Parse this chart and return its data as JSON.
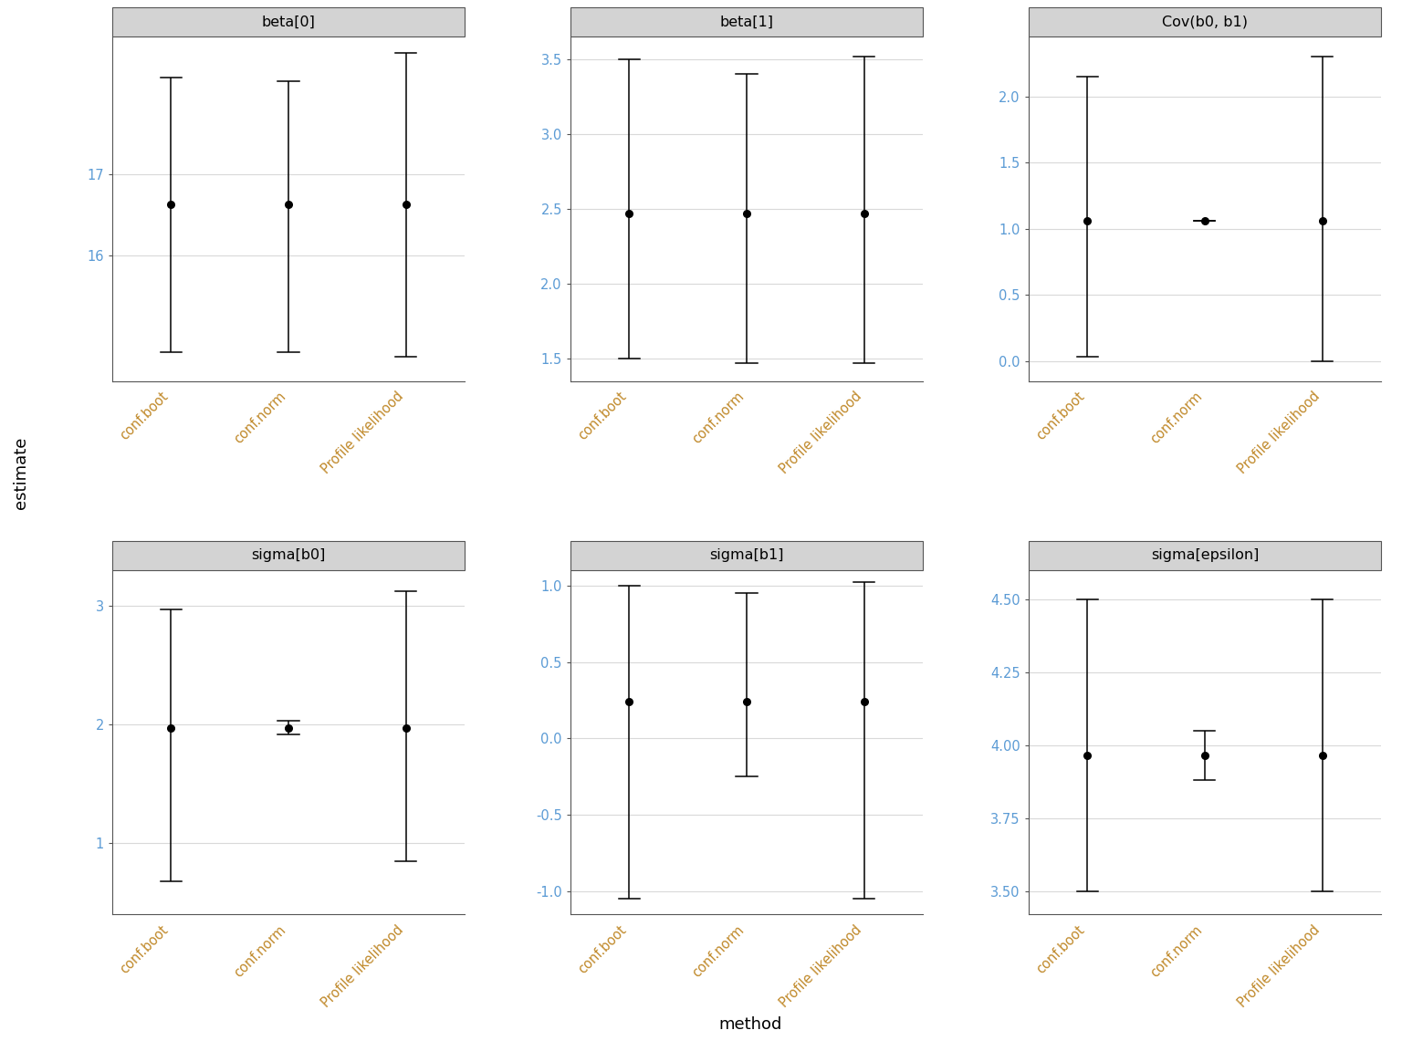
{
  "panels": [
    {
      "title": "beta[0]",
      "estimates": [
        16.625,
        16.625,
        16.625
      ],
      "lower": [
        14.8,
        14.8,
        14.75
      ],
      "upper": [
        18.2,
        18.15,
        18.5
      ],
      "ylim": [
        14.45,
        18.7
      ],
      "yticks": [
        16,
        17
      ],
      "ytick_labels": [
        "16",
        "17"
      ]
    },
    {
      "title": "beta[1]",
      "estimates": [
        2.47,
        2.47,
        2.47
      ],
      "lower": [
        1.5,
        1.47,
        1.47
      ],
      "upper": [
        3.5,
        3.4,
        3.52
      ],
      "ylim": [
        1.35,
        3.65
      ],
      "yticks": [
        1.5,
        2.0,
        2.5,
        3.0,
        3.5
      ],
      "ytick_labels": [
        "1.5",
        "2.0",
        "2.5",
        "3.0",
        "3.5"
      ]
    },
    {
      "title": "Cov(b0, b1)",
      "estimates": [
        1.06,
        1.06,
        1.06
      ],
      "lower": [
        0.03,
        1.06,
        0.0
      ],
      "upper": [
        2.15,
        1.06,
        2.3
      ],
      "ylim": [
        -0.15,
        2.45
      ],
      "yticks": [
        0.0,
        0.5,
        1.0,
        1.5,
        2.0
      ],
      "ytick_labels": [
        "0.0",
        "0.5",
        "1.0",
        "1.5",
        "2.0"
      ]
    },
    {
      "title": "sigma[b0]",
      "estimates": [
        1.97,
        1.97,
        1.97
      ],
      "lower": [
        0.68,
        1.92,
        0.85
      ],
      "upper": [
        2.97,
        2.03,
        3.12
      ],
      "ylim": [
        0.4,
        3.3
      ],
      "yticks": [
        1,
        2,
        3
      ],
      "ytick_labels": [
        "1",
        "2",
        "3"
      ]
    },
    {
      "title": "sigma[b1]",
      "estimates": [
        0.24,
        0.24,
        0.24
      ],
      "lower": [
        -1.05,
        -0.25,
        -1.05
      ],
      "upper": [
        1.0,
        0.95,
        1.02
      ],
      "ylim": [
        -1.15,
        1.1
      ],
      "yticks": [
        -1.0,
        -0.5,
        0.0,
        0.5,
        1.0
      ],
      "ytick_labels": [
        "-1.0",
        "-0.5",
        "0.0",
        "0.5",
        "1.0"
      ]
    },
    {
      "title": "sigma[epsilon]",
      "estimates": [
        3.965,
        3.965,
        3.965
      ],
      "lower": [
        3.5,
        3.88,
        3.5
      ],
      "upper": [
        4.5,
        4.05,
        4.5
      ],
      "ylim": [
        3.42,
        4.6
      ],
      "yticks": [
        3.5,
        3.75,
        4.0,
        4.25,
        4.5
      ],
      "ytick_labels": [
        "3.50",
        "3.75",
        "4.00",
        "4.25",
        "4.50"
      ]
    }
  ],
  "x_positions": [
    0.5,
    1.5,
    2.5
  ],
  "x_labels": [
    "conf.boot",
    "conf.norm",
    "Profile likelihood"
  ],
  "xlabel": "method",
  "ylabel": "estimate",
  "background_color": "#ffffff",
  "panel_header_color": "#d3d3d3",
  "panel_header_border": "#555555",
  "grid_color": "#d9d9d9",
  "point_color": "#000000",
  "line_color": "#000000",
  "ytick_color": "#5b9bd5",
  "xtick_color": "#c0892a",
  "title_color": "#000000",
  "axis_label_color": "#000000",
  "point_size": 5.5,
  "line_width": 1.1,
  "cap_halfwidth": 0.09,
  "spine_color": "#555555"
}
